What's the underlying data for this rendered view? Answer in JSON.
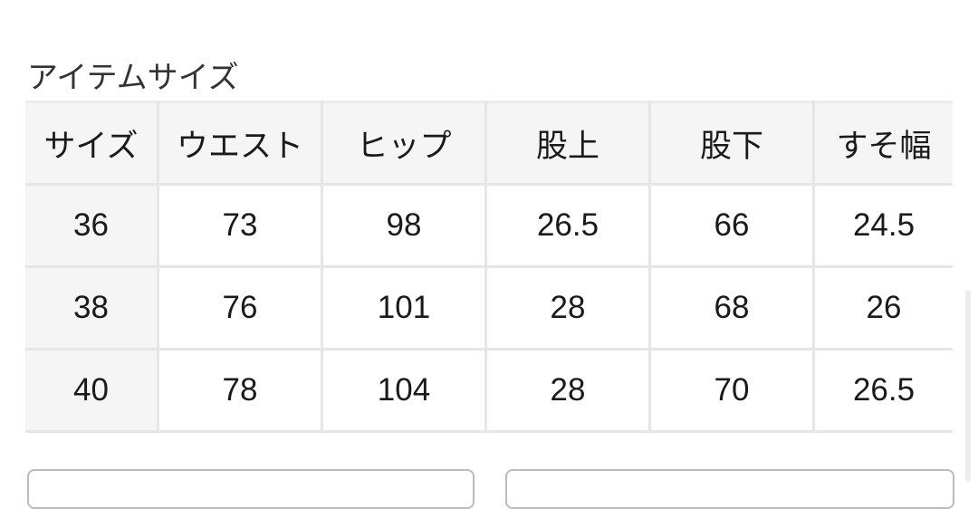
{
  "title": "アイテムサイズ",
  "table": {
    "headers": [
      "サイズ",
      "ウエスト",
      "ヒップ",
      "股上",
      "股下",
      "すそ幅"
    ],
    "rows": [
      [
        "36",
        "73",
        "98",
        "26.5",
        "66",
        "24.5"
      ],
      [
        "38",
        "76",
        "101",
        "28",
        "68",
        "26"
      ],
      [
        "40",
        "78",
        "104",
        "28",
        "70",
        "26.5"
      ]
    ]
  }
}
